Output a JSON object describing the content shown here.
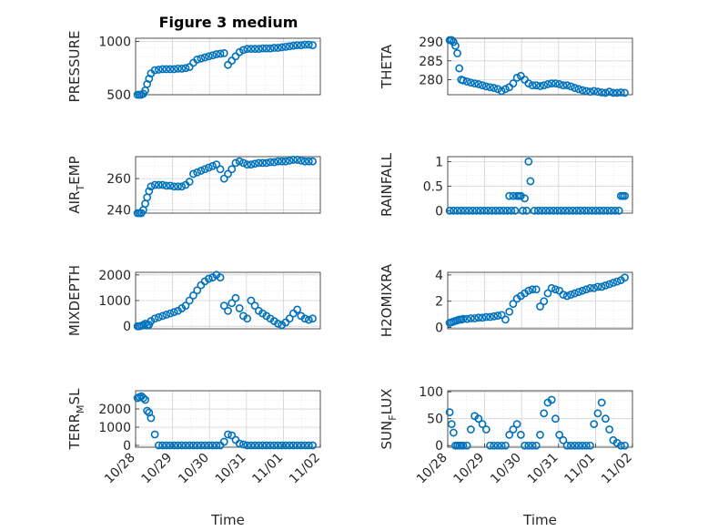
{
  "figure_title": "Figure 3 medium",
  "chart_data": [
    {
      "type": "scatter",
      "title": "Figure 3 medium",
      "ylabel": "PRESSURE",
      "ylim": [
        500,
        1030
      ],
      "yticks": [
        500,
        1000
      ],
      "ytick_labels": [
        "500",
        "1000"
      ],
      "xlim": [
        0,
        4.8
      ],
      "grid": true,
      "x": [
        0.05,
        0.1,
        0.15,
        0.2,
        0.25,
        0.3,
        0.35,
        0.4,
        0.5,
        0.6,
        0.7,
        0.8,
        0.9,
        1.0,
        1.1,
        1.2,
        1.3,
        1.4,
        1.5,
        1.6,
        1.7,
        1.8,
        1.9,
        2.0,
        2.1,
        2.2,
        2.3,
        2.4,
        2.5,
        2.6,
        2.7,
        2.8,
        2.9,
        3.0,
        3.1,
        3.2,
        3.3,
        3.4,
        3.5,
        3.6,
        3.7,
        3.8,
        3.9,
        4.0,
        4.1,
        4.2,
        4.3,
        4.4,
        4.5,
        4.6
      ],
      "y": [
        500,
        500,
        500,
        510,
        540,
        600,
        650,
        700,
        730,
        735,
        740,
        740,
        740,
        740,
        745,
        745,
        750,
        760,
        800,
        830,
        840,
        850,
        860,
        870,
        880,
        885,
        890,
        780,
        820,
        860,
        900,
        920,
        930,
        930,
        930,
        930,
        935,
        935,
        935,
        940,
        940,
        945,
        950,
        955,
        960,
        965,
        965,
        970,
        970,
        965
      ]
    },
    {
      "type": "scatter",
      "ylabel": "THETA",
      "ylim": [
        276,
        291
      ],
      "yticks": [
        280,
        285,
        290
      ],
      "ytick_labels": [
        "280",
        "285",
        "290"
      ],
      "xlim": [
        0,
        4.8
      ],
      "grid": true,
      "x": [
        0.05,
        0.1,
        0.15,
        0.2,
        0.25,
        0.3,
        0.35,
        0.4,
        0.5,
        0.6,
        0.7,
        0.8,
        0.9,
        1.0,
        1.1,
        1.2,
        1.3,
        1.4,
        1.5,
        1.6,
        1.7,
        1.8,
        1.9,
        2.0,
        2.1,
        2.2,
        2.3,
        2.4,
        2.5,
        2.6,
        2.7,
        2.8,
        2.9,
        3.0,
        3.1,
        3.2,
        3.3,
        3.4,
        3.5,
        3.6,
        3.7,
        3.8,
        3.9,
        4.0,
        4.1,
        4.2,
        4.3,
        4.4,
        4.5,
        4.6
      ],
      "y": [
        290.5,
        290.5,
        290,
        289,
        287,
        283,
        280,
        279.8,
        279.5,
        279.2,
        279,
        278.8,
        278.5,
        278.2,
        278,
        277.8,
        277.5,
        277,
        277.5,
        278,
        279,
        280.5,
        281,
        280,
        279,
        278.5,
        278.5,
        278.3,
        278.5,
        278.8,
        279,
        279,
        278.8,
        278.5,
        278.5,
        278.2,
        277.8,
        277.5,
        277.2,
        277,
        276.8,
        277,
        276.8,
        276.6,
        276.5,
        276.8,
        276.5,
        276.5,
        276.6,
        276.5
      ]
    },
    {
      "type": "scatter",
      "ylabel": "AIR_TEMP",
      "ylabel_parts": [
        "AIR",
        "T",
        "EMP"
      ],
      "ylim": [
        238,
        274
      ],
      "yticks": [
        240,
        260
      ],
      "ytick_labels": [
        "240",
        "260"
      ],
      "xlim": [
        0,
        4.8
      ],
      "grid": true,
      "x": [
        0.05,
        0.1,
        0.15,
        0.2,
        0.25,
        0.3,
        0.35,
        0.4,
        0.5,
        0.6,
        0.7,
        0.8,
        0.9,
        1.0,
        1.1,
        1.2,
        1.3,
        1.4,
        1.5,
        1.6,
        1.7,
        1.8,
        1.9,
        2.0,
        2.1,
        2.2,
        2.3,
        2.4,
        2.5,
        2.6,
        2.7,
        2.8,
        2.9,
        3.0,
        3.1,
        3.2,
        3.3,
        3.4,
        3.5,
        3.6,
        3.7,
        3.8,
        3.9,
        4.0,
        4.1,
        4.2,
        4.3,
        4.4,
        4.5,
        4.6
      ],
      "y": [
        238,
        238,
        238,
        240,
        244,
        248,
        252,
        255,
        256,
        256,
        256,
        255.5,
        255.5,
        255,
        255,
        255,
        256,
        258,
        263,
        264,
        265,
        266,
        267,
        268,
        269,
        266,
        260,
        263,
        266,
        270,
        271,
        270,
        269,
        269,
        269.5,
        270,
        270,
        270,
        270.5,
        270.5,
        271,
        271,
        271,
        271.5,
        272,
        272,
        271.5,
        271,
        271,
        271
      ]
    },
    {
      "type": "scatter",
      "ylabel": "RAINFALL",
      "ylim": [
        -0.05,
        1.1
      ],
      "yticks": [
        0,
        0.5,
        1
      ],
      "ytick_labels": [
        "0",
        "0.5",
        "1"
      ],
      "xlim": [
        0,
        4.8
      ],
      "grid": true,
      "x": [
        0.05,
        0.15,
        0.25,
        0.35,
        0.45,
        0.55,
        0.65,
        0.75,
        0.85,
        0.95,
        1.05,
        1.15,
        1.25,
        1.35,
        1.45,
        1.55,
        1.6,
        1.65,
        1.7,
        1.75,
        1.8,
        1.85,
        1.9,
        1.95,
        2.0,
        2.05,
        2.1,
        2.15,
        2.25,
        2.35,
        2.45,
        2.55,
        2.65,
        2.75,
        2.85,
        2.95,
        3.05,
        3.15,
        3.25,
        3.35,
        3.45,
        3.55,
        3.65,
        3.75,
        3.85,
        3.95,
        4.05,
        4.15,
        4.25,
        4.35,
        4.45,
        4.5,
        4.55,
        4.6
      ],
      "y": [
        0,
        0,
        0,
        0,
        0,
        0,
        0,
        0,
        0,
        0,
        0,
        0,
        0,
        0,
        0,
        0,
        0.3,
        0,
        0.3,
        0,
        0.3,
        0.3,
        0.3,
        0,
        0.25,
        0,
        1.0,
        0.6,
        0,
        0,
        0,
        0,
        0,
        0,
        0,
        0,
        0,
        0,
        0,
        0,
        0,
        0,
        0,
        0,
        0,
        0,
        0,
        0,
        0,
        0,
        0,
        0.3,
        0.3,
        0.3
      ]
    },
    {
      "type": "scatter",
      "ylabel": "MIXDEPTH",
      "ylim": [
        -100,
        2100
      ],
      "yticks": [
        0,
        1000,
        2000
      ],
      "ytick_labels": [
        "0",
        "1000",
        "2000"
      ],
      "xlim": [
        0,
        4.8
      ],
      "grid": true,
      "x": [
        0.05,
        0.1,
        0.15,
        0.2,
        0.25,
        0.3,
        0.35,
        0.4,
        0.5,
        0.6,
        0.7,
        0.8,
        0.9,
        1.0,
        1.1,
        1.2,
        1.3,
        1.4,
        1.5,
        1.6,
        1.7,
        1.8,
        1.9,
        2.0,
        2.1,
        2.2,
        2.3,
        2.4,
        2.5,
        2.6,
        2.7,
        2.8,
        2.9,
        3.0,
        3.1,
        3.2,
        3.3,
        3.4,
        3.5,
        3.6,
        3.7,
        3.8,
        3.9,
        4.0,
        4.1,
        4.2,
        4.3,
        4.4,
        4.5,
        4.6
      ],
      "y": [
        0,
        0,
        20,
        50,
        100,
        30,
        60,
        200,
        300,
        350,
        400,
        450,
        500,
        550,
        600,
        700,
        800,
        1000,
        1200,
        1400,
        1600,
        1750,
        1850,
        1900,
        2000,
        1900,
        800,
        600,
        900,
        1100,
        700,
        400,
        300,
        1000,
        800,
        600,
        500,
        400,
        300,
        200,
        100,
        50,
        150,
        300,
        500,
        650,
        400,
        300,
        250,
        300
      ]
    },
    {
      "type": "scatter",
      "ylabel": "H2OMIXRA",
      "ylim": [
        -0.1,
        4.2
      ],
      "yticks": [
        0,
        2,
        4
      ],
      "ytick_labels": [
        "0",
        "2",
        "4"
      ],
      "xlim": [
        0,
        4.8
      ],
      "grid": true,
      "x": [
        0.05,
        0.1,
        0.15,
        0.2,
        0.25,
        0.3,
        0.35,
        0.4,
        0.5,
        0.6,
        0.7,
        0.8,
        0.9,
        1.0,
        1.1,
        1.2,
        1.3,
        1.4,
        1.5,
        1.6,
        1.7,
        1.8,
        1.9,
        2.0,
        2.1,
        2.2,
        2.3,
        2.4,
        2.5,
        2.6,
        2.7,
        2.8,
        2.9,
        3.0,
        3.1,
        3.2,
        3.3,
        3.4,
        3.5,
        3.6,
        3.7,
        3.8,
        3.9,
        4.0,
        4.1,
        4.2,
        4.3,
        4.4,
        4.5,
        4.6
      ],
      "y": [
        0.35,
        0.4,
        0.45,
        0.5,
        0.55,
        0.6,
        0.6,
        0.65,
        0.65,
        0.7,
        0.7,
        0.75,
        0.75,
        0.8,
        0.8,
        0.85,
        0.9,
        0.95,
        0.6,
        1.2,
        1.8,
        2.2,
        2.4,
        2.6,
        2.8,
        2.9,
        2.9,
        1.6,
        2.0,
        2.6,
        3.0,
        2.9,
        2.8,
        2.5,
        2.4,
        2.5,
        2.6,
        2.7,
        2.8,
        2.9,
        3.0,
        3.0,
        3.1,
        3.1,
        3.2,
        3.3,
        3.4,
        3.5,
        3.6,
        3.8
      ]
    },
    {
      "type": "scatter",
      "ylabel": "TERR_MSL",
      "ylabel_parts": [
        "TERR",
        "M",
        "SL"
      ],
      "ylim": [
        -100,
        3000
      ],
      "yticks": [
        0,
        1000,
        2000
      ],
      "ytick_labels": [
        "0",
        "1000",
        "2000"
      ],
      "xlim": [
        0,
        4.8
      ],
      "grid": true,
      "xticks": [
        0,
        1,
        2,
        3,
        4,
        5
      ],
      "xtick_labels": [
        "10/28",
        "10/29",
        "10/30",
        "10/31",
        "11/01",
        "11/02"
      ],
      "xlabel": "Time",
      "x": [
        0.05,
        0.1,
        0.15,
        0.2,
        0.25,
        0.3,
        0.35,
        0.4,
        0.5,
        0.6,
        0.7,
        0.8,
        0.9,
        1.0,
        1.1,
        1.2,
        1.3,
        1.4,
        1.5,
        1.6,
        1.7,
        1.8,
        1.9,
        2.0,
        2.1,
        2.2,
        2.3,
        2.4,
        2.5,
        2.6,
        2.7,
        2.8,
        2.9,
        3.0,
        3.1,
        3.2,
        3.3,
        3.4,
        3.5,
        3.6,
        3.7,
        3.8,
        3.9,
        4.0,
        4.1,
        4.2,
        4.3,
        4.4,
        4.5,
        4.6
      ],
      "y": [
        2600,
        2650,
        2700,
        2600,
        2500,
        1900,
        1800,
        1500,
        600,
        0,
        0,
        0,
        0,
        0,
        0,
        0,
        0,
        0,
        0,
        0,
        0,
        0,
        0,
        0,
        0,
        0,
        200,
        600,
        550,
        300,
        100,
        50,
        0,
        0,
        0,
        0,
        0,
        0,
        0,
        0,
        0,
        0,
        0,
        0,
        0,
        0,
        0,
        0,
        0,
        0
      ]
    },
    {
      "type": "scatter",
      "ylabel": "SUN_FLUX",
      "ylabel_parts": [
        "SUN",
        "F",
        "LUX"
      ],
      "ylim": [
        -3,
        102
      ],
      "yticks": [
        0,
        50,
        100
      ],
      "ytick_labels": [
        "0",
        "50",
        "100"
      ],
      "xlim": [
        0,
        4.8
      ],
      "grid": true,
      "xticks": [
        0,
        1,
        2,
        3,
        4,
        5
      ],
      "xtick_labels": [
        "10/28",
        "10/29",
        "10/30",
        "10/31",
        "11/01",
        "11/02"
      ],
      "xlabel": "Time",
      "x": [
        0.05,
        0.1,
        0.15,
        0.2,
        0.25,
        0.3,
        0.35,
        0.4,
        0.5,
        0.6,
        0.7,
        0.8,
        0.9,
        1.0,
        1.1,
        1.2,
        1.3,
        1.4,
        1.5,
        1.6,
        1.7,
        1.8,
        1.9,
        2.0,
        2.1,
        2.2,
        2.3,
        2.4,
        2.5,
        2.6,
        2.7,
        2.8,
        2.9,
        3.0,
        3.1,
        3.2,
        3.3,
        3.4,
        3.5,
        3.6,
        3.7,
        3.8,
        3.9,
        4.0,
        4.1,
        4.2,
        4.3,
        4.4,
        4.5,
        4.6
      ],
      "y": [
        62,
        40,
        24,
        0,
        0,
        0,
        0,
        0,
        0,
        30,
        55,
        50,
        40,
        30,
        0,
        0,
        0,
        0,
        0,
        20,
        30,
        40,
        20,
        0,
        0,
        0,
        0,
        20,
        60,
        80,
        85,
        50,
        20,
        10,
        0,
        0,
        0,
        0,
        0,
        0,
        0,
        40,
        60,
        80,
        50,
        30,
        10,
        5,
        0,
        0
      ]
    }
  ]
}
